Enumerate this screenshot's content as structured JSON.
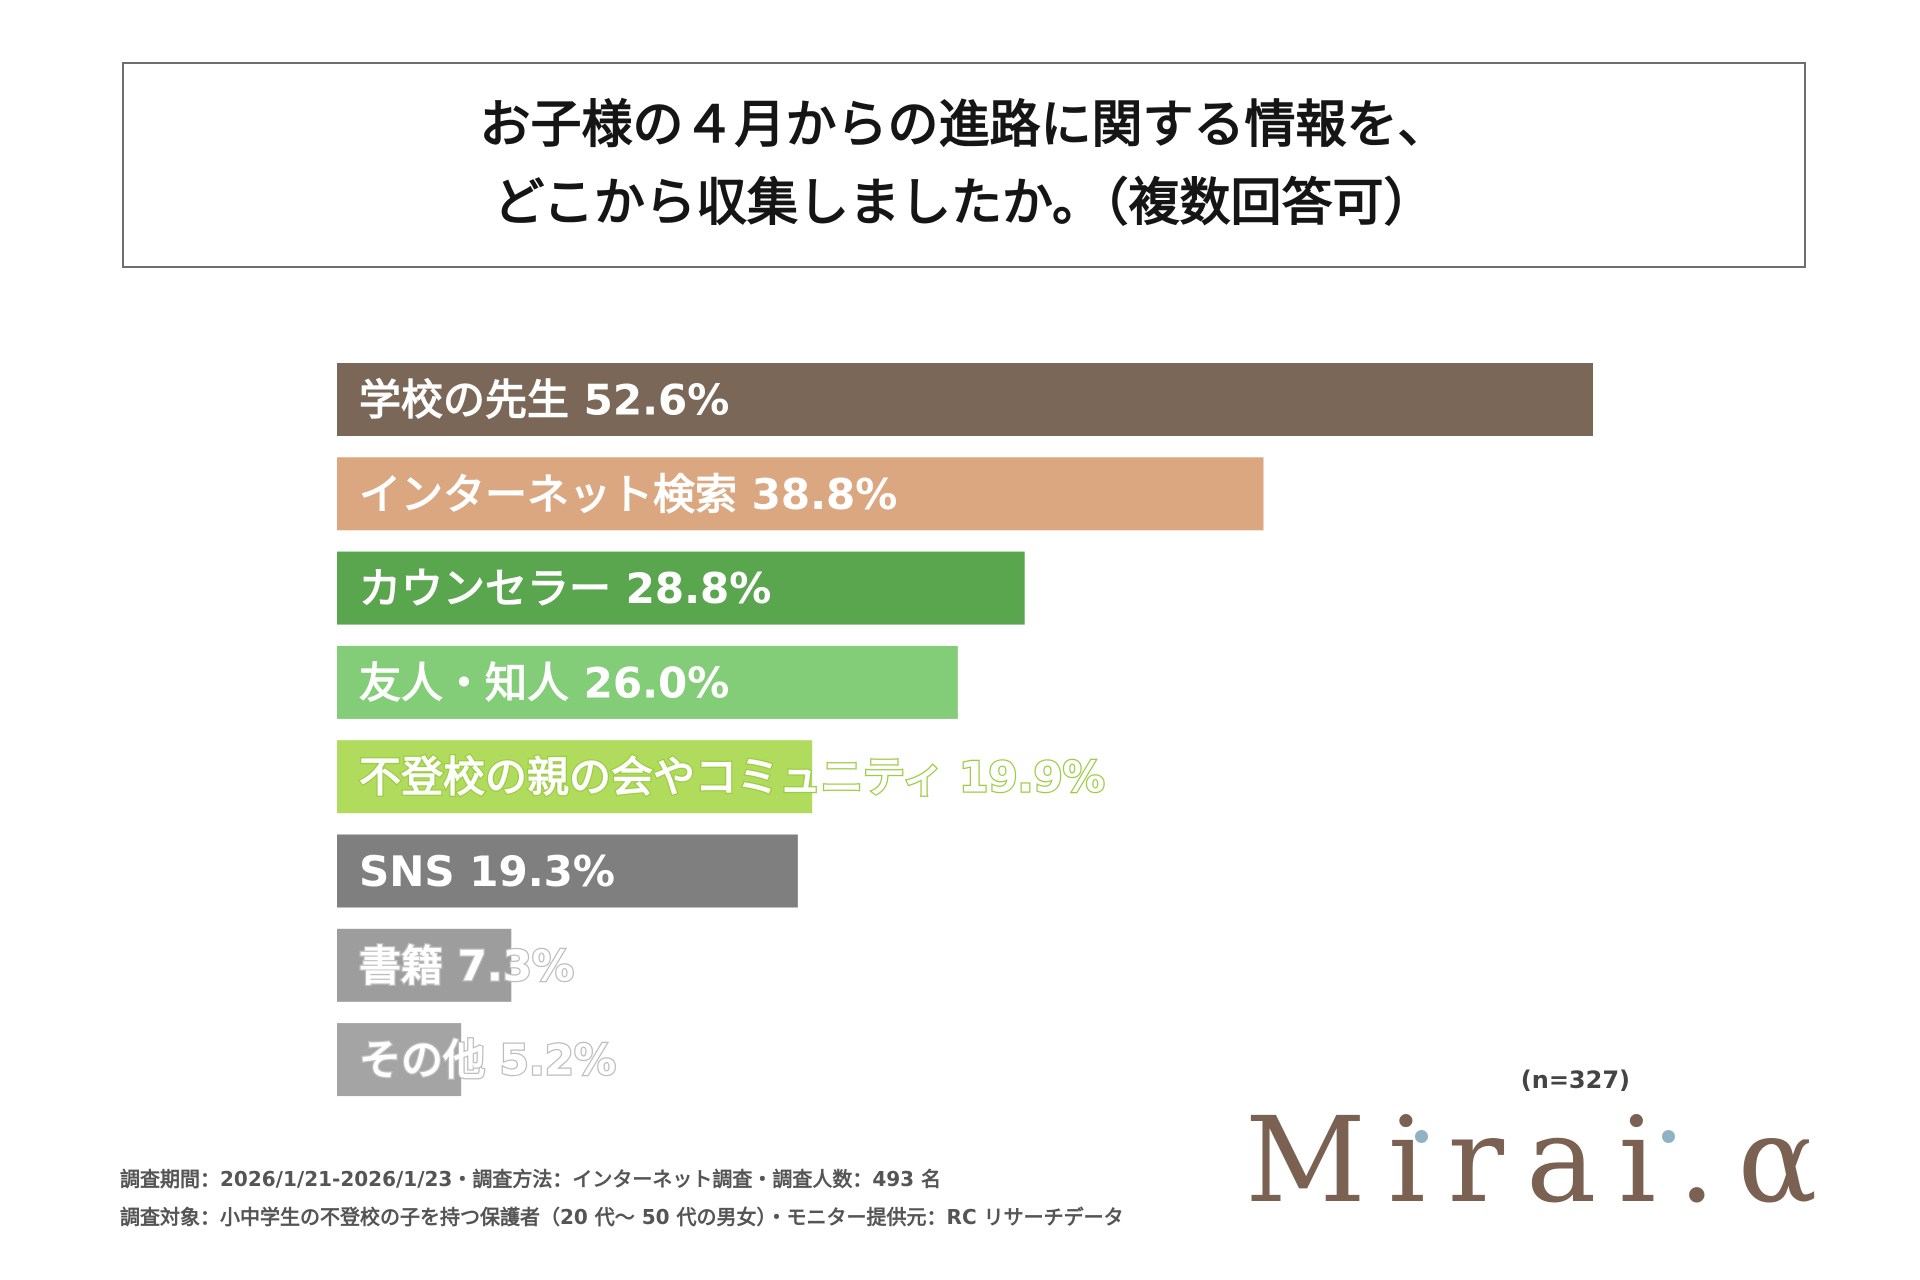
{
  "title": {
    "line1": "お子様の４月からの進路に関する情報を、",
    "line2": "どこから収集しましたか。（複数回答可）"
  },
  "chart_data": {
    "type": "bar",
    "orientation": "horizontal",
    "unit": "%",
    "xlim": [
      0,
      52.6
    ],
    "categories": [
      "学校の先生",
      "インターネット検索",
      "カウンセラー",
      "友人・知人",
      "不登校の親の会やコミュニティ",
      "SNS",
      "書籍",
      "その他"
    ],
    "values": [
      52.6,
      38.8,
      28.8,
      26.0,
      19.9,
      19.3,
      7.3,
      5.2
    ],
    "labels": [
      "学校の先生  52.6%",
      "インターネット検索  38.8%",
      "カウンセラー  28.8%",
      "友人・知人  26.0%",
      "不登校の親の会やコミュニティ 19.9%",
      "SNS  19.3%",
      "書籍  7.3%",
      "その他  5.2%"
    ],
    "colors": [
      "#7a6757",
      "#daa780",
      "#5aa64e",
      "#83cc78",
      "#b1db5c",
      "#7f7f7f",
      "#9d9d9d",
      "#a4a4a4"
    ],
    "label_stroke": [
      "",
      "",
      "",
      "",
      "lime",
      "",
      "gray",
      "gray"
    ],
    "sample_size": "(n=327)"
  },
  "footer": {
    "line1": "調査期間：2026/1/21-2026/1/23・調査方法：インターネット調査・調査人数：493 名",
    "line2": "調査対象：小中学生の不登校の子を持つ保護者（20 代～ 50 代の男女）・モニター提供元：RC リサーチデータ"
  },
  "logo": {
    "text": "Mirai.α",
    "dot_color": "#8fb3c4",
    "text_color": "#7b6152"
  }
}
